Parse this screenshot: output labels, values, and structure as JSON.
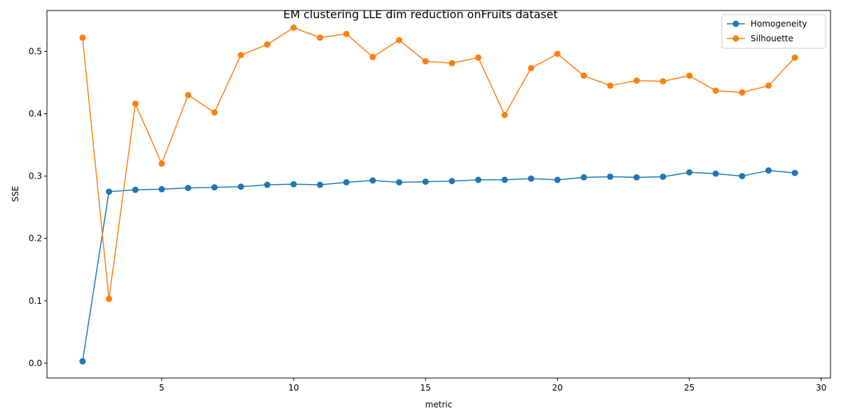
{
  "chart_data": {
    "type": "line",
    "title": "EM clustering LLE dim reduction onFruits dataset",
    "xlabel": "metric",
    "ylabel": "SSE",
    "xlim": [
      0.65,
      30.35
    ],
    "ylim": [
      -0.0237,
      0.5655
    ],
    "x_ticks": [
      5,
      10,
      15,
      20,
      25,
      30
    ],
    "y_ticks": [
      0.0,
      0.1,
      0.2,
      0.3,
      0.4,
      0.5
    ],
    "x_tick_labels": [
      "5",
      "10",
      "15",
      "20",
      "25",
      "30"
    ],
    "y_tick_labels": [
      "0.0",
      "0.1",
      "0.2",
      "0.3",
      "0.4",
      "0.5"
    ],
    "grid": false,
    "legend_position": "upper right",
    "x": [
      2,
      3,
      4,
      5,
      6,
      7,
      8,
      9,
      10,
      11,
      12,
      13,
      14,
      15,
      16,
      17,
      18,
      19,
      20,
      21,
      22,
      23,
      24,
      25,
      26,
      27,
      28,
      29
    ],
    "series": [
      {
        "name": "Homogeneity",
        "color": "#1f77b4",
        "values": [
          0.003,
          0.275,
          0.278,
          0.279,
          0.281,
          0.282,
          0.283,
          0.286,
          0.287,
          0.286,
          0.29,
          0.293,
          0.29,
          0.291,
          0.292,
          0.294,
          0.294,
          0.296,
          0.294,
          0.298,
          0.299,
          0.298,
          0.299,
          0.306,
          0.304,
          0.3,
          0.309,
          0.305
        ]
      },
      {
        "name": "Silhouette",
        "color": "#ff7f0e",
        "values": [
          0.522,
          0.103,
          0.416,
          0.32,
          0.43,
          0.402,
          0.494,
          0.511,
          0.538,
          0.522,
          0.528,
          0.491,
          0.518,
          0.484,
          0.481,
          0.49,
          0.398,
          0.473,
          0.496,
          0.461,
          0.445,
          0.453,
          0.452,
          0.461,
          0.437,
          0.434,
          0.445,
          0.49
        ]
      }
    ]
  }
}
